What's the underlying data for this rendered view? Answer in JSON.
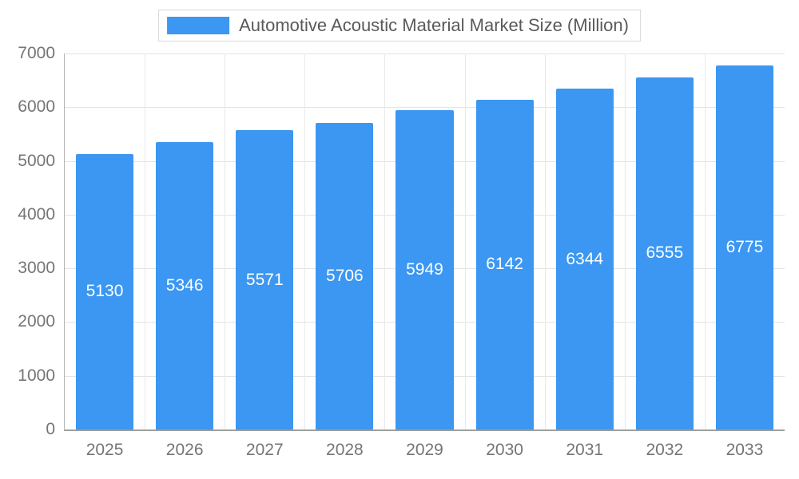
{
  "chart_data": {
    "type": "bar",
    "title": "Automotive Acoustic Material Market Size (Million)",
    "categories": [
      "2025",
      "2026",
      "2027",
      "2028",
      "2029",
      "2030",
      "2031",
      "2032",
      "2033"
    ],
    "values": [
      5130,
      5346,
      5571,
      5706,
      5949,
      6142,
      6344,
      6555,
      6775
    ],
    "xlabel": "",
    "ylabel": "",
    "ylim": [
      0,
      7000
    ],
    "y_tick_step": 1000,
    "y_tick_labels": [
      "0",
      "1000",
      "2000",
      "3000",
      "4000",
      "5000",
      "6000",
      "7000"
    ],
    "grid": "on",
    "legend_position": "top-center",
    "colors": {
      "bar": "#3b97f2",
      "bar_label_text": "#ffffff",
      "grid_h": "#e3e3e3",
      "grid_v": "#e9e9e9",
      "axis_text": "#757575",
      "legend_text": "#595959",
      "background": "#ffffff"
    }
  }
}
